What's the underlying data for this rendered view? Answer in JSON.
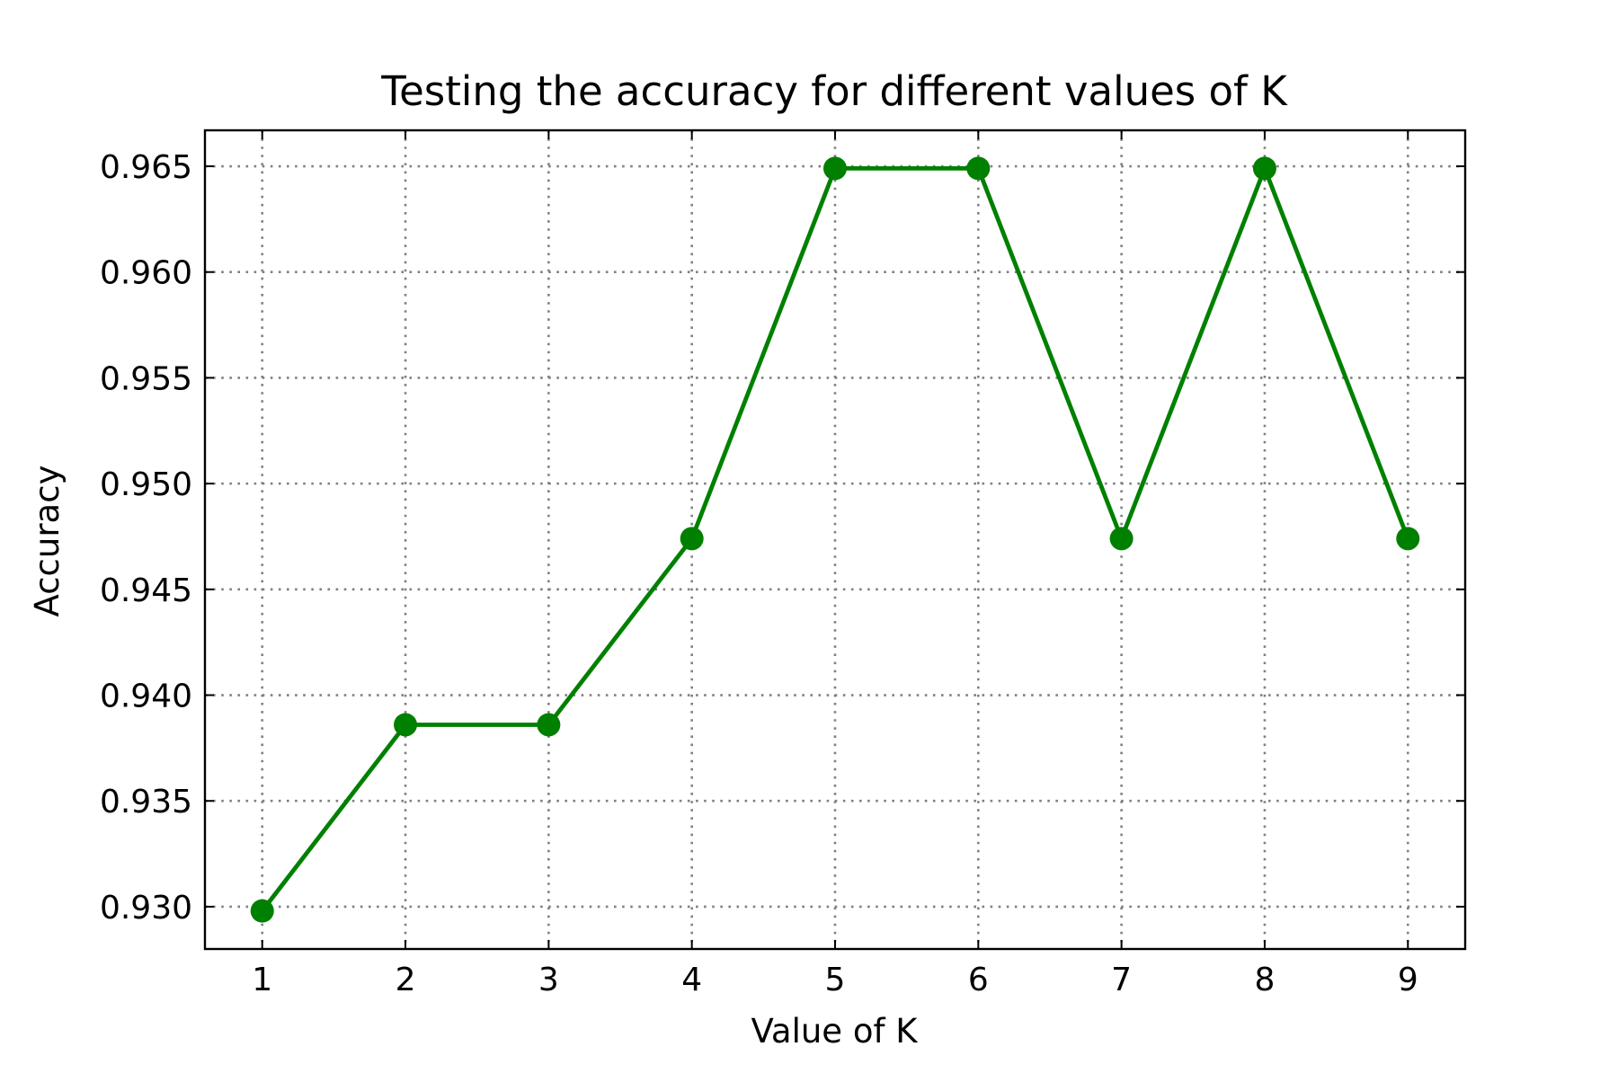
{
  "chart_data": {
    "type": "line",
    "title": "Testing the accuracy for different values of K",
    "xlabel": "Value of K",
    "ylabel": "Accuracy",
    "x": [
      1,
      2,
      3,
      4,
      5,
      6,
      7,
      8,
      9
    ],
    "series": [
      {
        "values": [
          0.9298,
          0.9386,
          0.9386,
          0.9474,
          0.9649,
          0.9649,
          0.9474,
          0.9649,
          0.9474
        ],
        "color": "#008000",
        "marker": "circle"
      }
    ],
    "xlim": [
      0.6,
      9.4
    ],
    "ylim": [
      0.928,
      0.9667
    ],
    "x_ticks": [
      "1",
      "2",
      "3",
      "4",
      "5",
      "6",
      "7",
      "8",
      "9"
    ],
    "y_ticks": [
      "0.930",
      "0.935",
      "0.940",
      "0.945",
      "0.950",
      "0.955",
      "0.960",
      "0.965"
    ],
    "grid": true,
    "grid_style": "dotted",
    "grid_color": "#808080",
    "tick_direction": "in"
  }
}
